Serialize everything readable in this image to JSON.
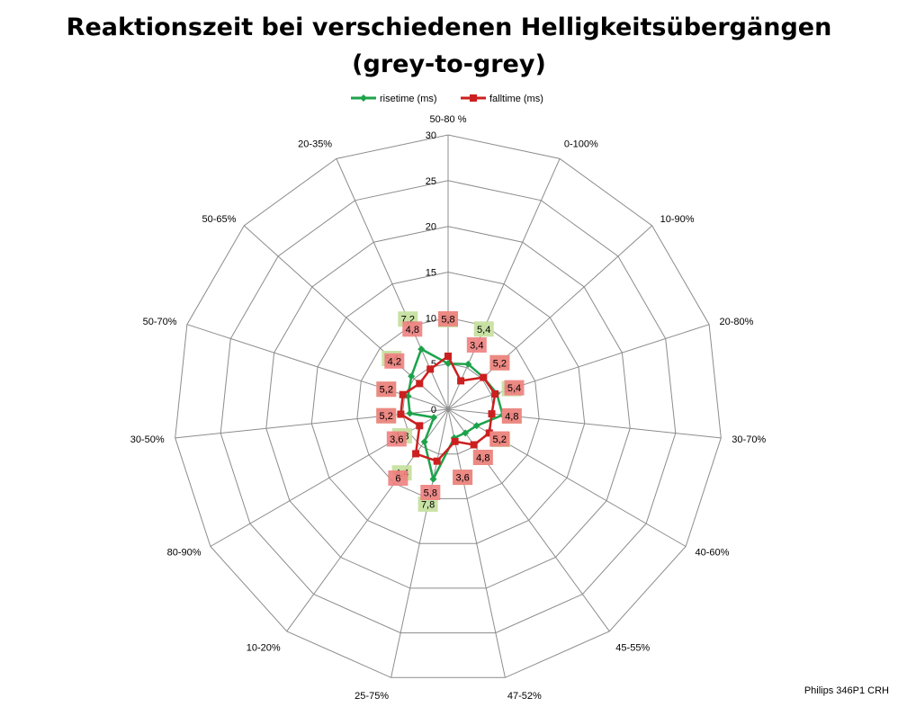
{
  "chart_data": {
    "type": "radar",
    "title": "Reaktionszeit bei verschiedenen Helligkeitsübergängen",
    "subtitle": "(grey-to-grey)",
    "categories": [
      "50-80 %",
      "0-100%",
      "10-90%",
      "20-80%",
      "30-70%",
      "40-60%",
      "45-55%",
      "47-52%",
      "25-75%",
      "10-20%",
      "80-90%",
      "30-50%",
      "50-70%",
      "50-65%",
      "20-35%"
    ],
    "rlim": [
      0,
      30
    ],
    "rticks": [
      "0",
      "5",
      "10",
      "15",
      "20",
      "25",
      "30"
    ],
    "legend_position": "top",
    "series": [
      {
        "name": "risetime (ms)",
        "color": "#1ca34a",
        "label_bg": "#c6e0a0",
        "marker": "diamond",
        "values": [
          5,
          5.4,
          5.2,
          5.6,
          6,
          3.6,
          3.2,
          3.2,
          7.8,
          4.4,
          1.8,
          4.2,
          4.6,
          5.4,
          7.2
        ],
        "labels": [
          "5",
          "5,4",
          "5,2",
          "5,6",
          "6",
          "3,6",
          "3,2",
          "3,2",
          "7,8",
          "4,4",
          "1,8",
          "4,2",
          "4,6",
          "5,4",
          "7,2"
        ]
      },
      {
        "name": "falltime (ms)",
        "color": "#cc1f1f",
        "label_bg": "#f08080",
        "marker": "square",
        "values": [
          5.8,
          3.4,
          5.2,
          5.4,
          4.8,
          5.2,
          4.8,
          3.6,
          5.8,
          6,
          3.6,
          5.2,
          5.2,
          4.2,
          4.8
        ],
        "labels": [
          "5,8",
          "3,4",
          "5,2",
          "5,4",
          "4,8",
          "5,2",
          "4,8",
          "3,6",
          "5,8",
          "6",
          "3,6",
          "5,2",
          "5,2",
          "4,2",
          "4,8"
        ]
      }
    ],
    "grid": true
  },
  "credit": "Philips 346P1  CRH"
}
